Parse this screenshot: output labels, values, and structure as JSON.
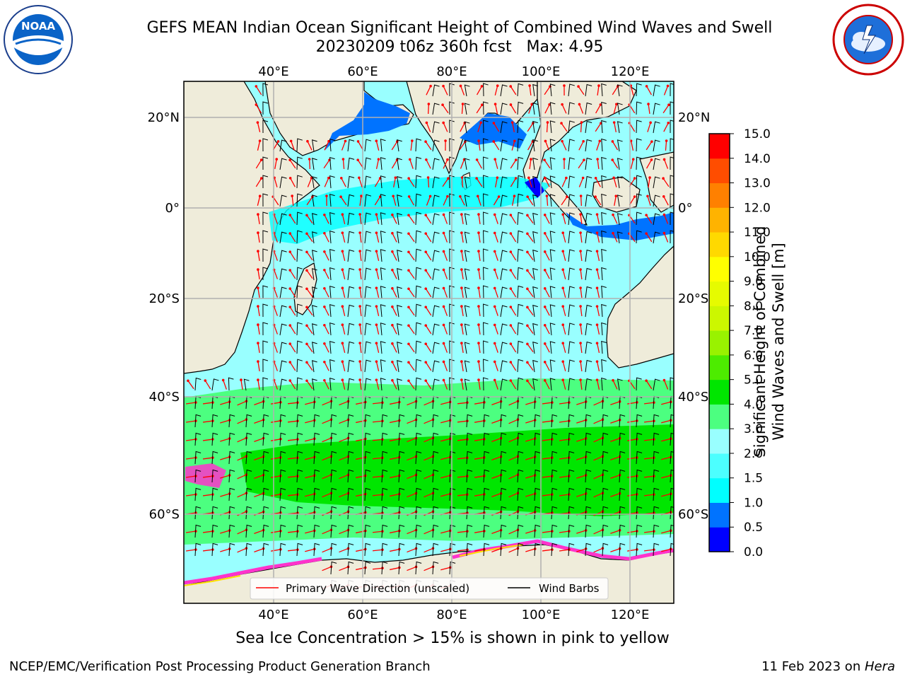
{
  "header": {
    "title_line1": "GEFS MEAN Indian Ocean Significant Height of Combined Wind Waves and Swell",
    "title_line2": "20230209 t06z 360h fcst   Max: 4.95"
  },
  "logos": {
    "left": {
      "icon": "noaa-logo-icon",
      "text": "NOAA",
      "ring_text": "NATIONAL OCEANIC AND ATMOSPHERIC ADMINISTRATION · U.S. DEPARTMENT OF COMMERCE"
    },
    "right": {
      "icon": "nws-logo-icon",
      "ring_text": "NATIONAL WEATHER SERVICE"
    }
  },
  "map": {
    "lon_ticks": [
      "40°E",
      "60°E",
      "80°E",
      "100°E",
      "120°E"
    ],
    "lat_ticks": [
      "20°N",
      "0°",
      "20°S",
      "40°S",
      "60°S"
    ],
    "colors": {
      "land": "#efecda",
      "frame": "#000000",
      "grid": "#b0b0b0",
      "wave_arrow": "#ff0000",
      "wind_barb": "#000000"
    }
  },
  "legend": {
    "wave": "Primary Wave Direction (unscaled)",
    "wind": "Wind Barbs"
  },
  "colorbar": {
    "title": "Significant Height of Combined\nWind Waves and Swell [m]",
    "ticks": [
      "0.0",
      "0.5",
      "1.0",
      "1.5",
      "2.0",
      "3.0",
      "4.0",
      "5.0",
      "6.0",
      "7.0",
      "8.0",
      "9.0",
      "10.0",
      "11.0",
      "12.0",
      "13.0",
      "14.0",
      "15.0"
    ],
    "colors": [
      "#0000ff",
      "#0073ff",
      "#00ffff",
      "#4cffff",
      "#99ffff",
      "#4cff80",
      "#00e600",
      "#4dec00",
      "#99f200",
      "#ccf700",
      "#e6fb00",
      "#ffff00",
      "#ffd900",
      "#ffb300",
      "#ff8000",
      "#ff4d00",
      "#ff0000"
    ]
  },
  "note": "Sea Ice Concentration > 15% is shown in pink to yellow",
  "footer": {
    "left": "NCEP/EMC/Verification Post Processing Product Generation Branch",
    "right_date": "11 Feb 2023 on ",
    "right_host": "Hera"
  }
}
